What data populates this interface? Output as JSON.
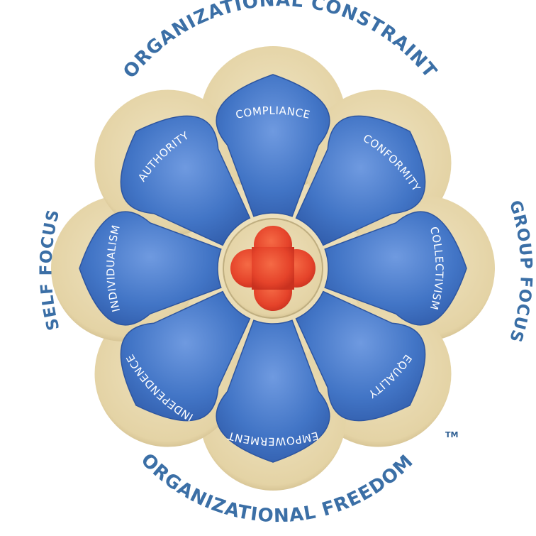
{
  "outer_labels": {
    "top": "ORGANIZATIONAL CONSTRAINT",
    "bottom": "ORGANIZATIONAL FREEDOM",
    "left": "SELF FOCUS",
    "right": "GROUP FOCUS"
  },
  "petals": [
    {
      "id": "compliance",
      "label": "COMPLIANCE"
    },
    {
      "id": "conformity",
      "label": "CONFORMITY"
    },
    {
      "id": "collectivism",
      "label": "COLLECTIVISM"
    },
    {
      "id": "equality",
      "label": "EQUALITY"
    },
    {
      "id": "empowerment",
      "label": "EMPOWERMENT"
    },
    {
      "id": "independence",
      "label": "INDEPENDENCE"
    },
    {
      "id": "individualism",
      "label": "INDIVIDUALISM"
    },
    {
      "id": "authority",
      "label": "AUTHORITY"
    }
  ],
  "trademark": "TM",
  "colors": {
    "frame": "#e6d7ad",
    "frame_edge": "#bfae80",
    "petal_fill": "#3d72c4",
    "petal_light": "#6f9ae0",
    "center": "#e8452b",
    "outer_text": "#3b6fa6"
  }
}
